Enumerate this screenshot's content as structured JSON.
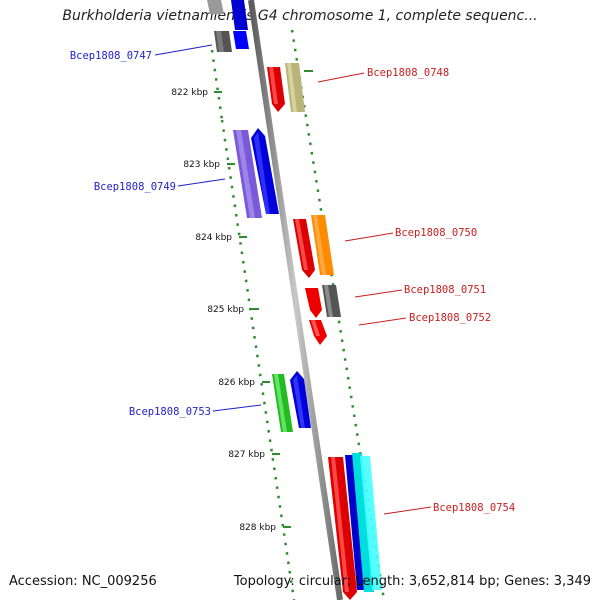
{
  "title": "Burkholderia vietnamiensis G4 chromosome 1, complete sequenc...",
  "footer": {
    "accession": "Accession: NC_009256",
    "info": "Topology: circular; Length: 3,652,814 bp; Genes: 3,349"
  },
  "scale": {
    "unit": "kbp",
    "labels": [
      "822 kbp",
      "823 kbp",
      "824 kbp",
      "825 kbp",
      "826 kbp",
      "827 kbp",
      "828 kbp"
    ]
  },
  "colors": {
    "axis": "#8a8a8a",
    "dots": "#2e8b2e",
    "blue_label": "#1f1fc8",
    "red_label": "#c81e1e"
  },
  "genes": [
    {
      "name": "Bcep1808_0747",
      "strand": "-"
    },
    {
      "name": "Bcep1808_0748",
      "strand": "+"
    },
    {
      "name": "Bcep1808_0749",
      "strand": "-"
    },
    {
      "name": "Bcep1808_0750",
      "strand": "+"
    },
    {
      "name": "Bcep1808_0751",
      "strand": "+"
    },
    {
      "name": "Bcep1808_0752",
      "strand": "+"
    },
    {
      "name": "Bcep1808_0753",
      "strand": "-"
    },
    {
      "name": "Bcep1808_0754",
      "strand": "+"
    }
  ]
}
